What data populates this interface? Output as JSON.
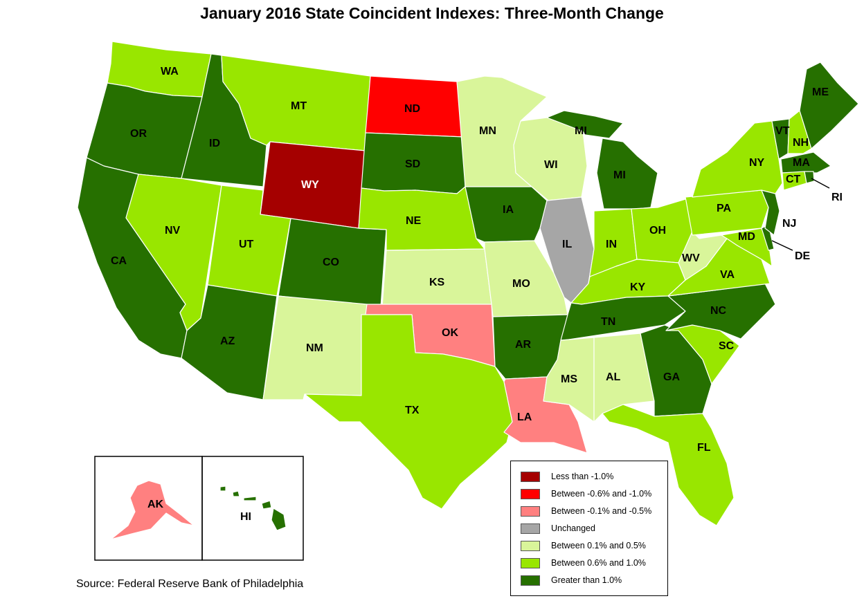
{
  "title": "January 2016 State Coincident Indexes: Three-Month Change",
  "source": "Source: Federal Reserve Bank of Philadelphia",
  "colors": {
    "lt_neg1": "#a50000",
    "neg06_10": "#ff0000",
    "neg01_05": "#ff8080",
    "unchanged": "#a6a6a6",
    "pos01_05": "#d9f59a",
    "pos06_10": "#99e600",
    "gt_1": "#267000"
  },
  "legend": [
    {
      "key": "lt_neg1",
      "label": "Less than -1.0%"
    },
    {
      "key": "neg06_10",
      "label": "Between -0.6% and -1.0%"
    },
    {
      "key": "neg01_05",
      "label": "Between -0.1% and -0.5%"
    },
    {
      "key": "unchanged",
      "label": "Unchanged"
    },
    {
      "key": "pos01_05",
      "label": "Between 0.1% and 0.5%"
    },
    {
      "key": "pos06_10",
      "label": "Between 0.6% and 1.0%"
    },
    {
      "key": "gt_1",
      "label": "Greater than 1.0%"
    }
  ],
  "states": {
    "WA": {
      "label": "WA",
      "category": "pos06_10"
    },
    "OR": {
      "label": "OR",
      "category": "gt_1"
    },
    "CA": {
      "label": "CA",
      "category": "gt_1"
    },
    "ID": {
      "label": "ID",
      "category": "gt_1"
    },
    "NV": {
      "label": "NV",
      "category": "pos06_10"
    },
    "MT": {
      "label": "MT",
      "category": "pos06_10"
    },
    "WY": {
      "label": "WY",
      "category": "lt_neg1"
    },
    "UT": {
      "label": "UT",
      "category": "pos06_10"
    },
    "AZ": {
      "label": "AZ",
      "category": "gt_1"
    },
    "CO": {
      "label": "CO",
      "category": "gt_1"
    },
    "NM": {
      "label": "NM",
      "category": "pos01_05"
    },
    "ND": {
      "label": "ND",
      "category": "neg06_10"
    },
    "SD": {
      "label": "SD",
      "category": "gt_1"
    },
    "NE": {
      "label": "NE",
      "category": "pos06_10"
    },
    "KS": {
      "label": "KS",
      "category": "pos01_05"
    },
    "OK": {
      "label": "OK",
      "category": "neg01_05"
    },
    "TX": {
      "label": "TX",
      "category": "pos06_10"
    },
    "MN": {
      "label": "MN",
      "category": "pos01_05"
    },
    "IA": {
      "label": "IA",
      "category": "gt_1"
    },
    "MO": {
      "label": "MO",
      "category": "pos01_05"
    },
    "AR": {
      "label": "AR",
      "category": "gt_1"
    },
    "LA": {
      "label": "LA",
      "category": "neg01_05"
    },
    "WI": {
      "label": "WI",
      "category": "pos01_05"
    },
    "IL": {
      "label": "IL",
      "category": "unchanged"
    },
    "MI": {
      "label": "MI",
      "category": "gt_1"
    },
    "IN": {
      "label": "IN",
      "category": "pos06_10"
    },
    "OH": {
      "label": "OH",
      "category": "pos06_10"
    },
    "KY": {
      "label": "KY",
      "category": "pos06_10"
    },
    "TN": {
      "label": "TN",
      "category": "gt_1"
    },
    "MS": {
      "label": "MS",
      "category": "pos01_05"
    },
    "AL": {
      "label": "AL",
      "category": "pos01_05"
    },
    "GA": {
      "label": "GA",
      "category": "gt_1"
    },
    "FL": {
      "label": "FL",
      "category": "pos06_10"
    },
    "SC": {
      "label": "SC",
      "category": "pos06_10"
    },
    "NC": {
      "label": "NC",
      "category": "gt_1"
    },
    "VA": {
      "label": "VA",
      "category": "pos06_10"
    },
    "WV": {
      "label": "WV",
      "category": "pos01_05"
    },
    "PA": {
      "label": "PA",
      "category": "pos06_10"
    },
    "NY": {
      "label": "NY",
      "category": "pos06_10"
    },
    "VT": {
      "label": "VT",
      "category": "gt_1"
    },
    "NH": {
      "label": "NH",
      "category": "pos06_10"
    },
    "ME": {
      "label": "ME",
      "category": "gt_1"
    },
    "MA": {
      "label": "MA",
      "category": "gt_1"
    },
    "CT": {
      "label": "CT",
      "category": "pos06_10"
    },
    "RI": {
      "label": "RI",
      "category": "gt_1"
    },
    "NJ": {
      "label": "NJ",
      "category": "gt_1"
    },
    "DE": {
      "label": "DE",
      "category": "gt_1"
    },
    "MD": {
      "label": "MD",
      "category": "pos06_10"
    },
    "AK": {
      "label": "AK",
      "category": "neg01_05"
    },
    "HI": {
      "label": "HI",
      "category": "gt_1"
    }
  }
}
